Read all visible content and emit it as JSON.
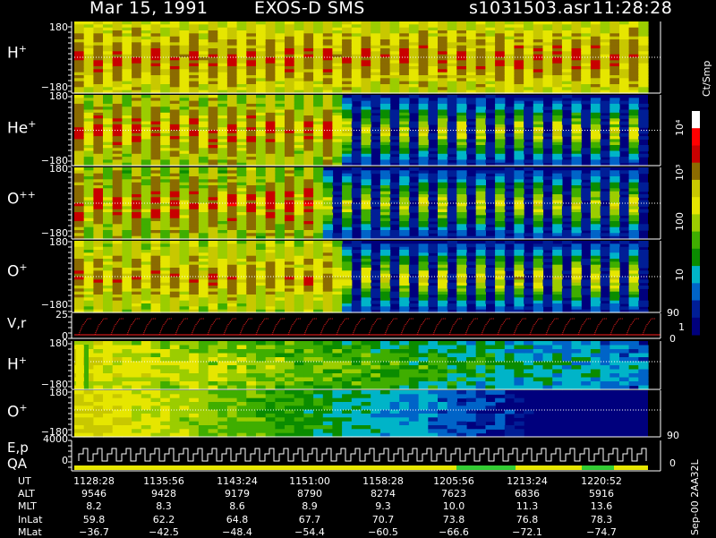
{
  "header": {
    "date": "Mar 15, 1991",
    "instrument": "EXOS-D SMS",
    "file": "s1031503.asr",
    "time": "11:28:28"
  },
  "panels": [
    {
      "species": "H",
      "charge": "+",
      "tick_top": "180",
      "tick_bottom": "−180"
    },
    {
      "species": "He",
      "charge": "+",
      "tick_top": "180",
      "tick_bottom": "−180"
    },
    {
      "species": "O",
      "charge": "++",
      "tick_top": "180",
      "tick_bottom": "−180"
    },
    {
      "species": "O",
      "charge": "+",
      "tick_top": "180",
      "tick_bottom": "−180"
    }
  ],
  "vr_panel": {
    "label": "V,r",
    "tick_top": "25",
    "tick_bottom": "0",
    "right_tick": "90"
  },
  "lower_panels": [
    {
      "species": "H",
      "charge": "+",
      "tick_top": "180",
      "tick_bottom": "−180"
    },
    {
      "species": "O",
      "charge": "+",
      "tick_top": "180",
      "tick_bottom": "−180",
      "right_tick": "90"
    }
  ],
  "ep_panel": {
    "label": "E,p",
    "tick_top": "4000",
    "tick_bottom": "0",
    "right_tick": "0"
  },
  "qa_label": "QA",
  "colorbar": {
    "unit": "Ct/Smp",
    "labels": [
      "10⁴",
      "10³",
      "100",
      "10",
      "1",
      "0"
    ],
    "colors": [
      "#ffffff",
      "#ff0000",
      "#c80000",
      "#8b6b00",
      "#c8c800",
      "#e6e600",
      "#9bcd00",
      "#3fae00",
      "#0a8c00",
      "#00b4c8",
      "#0064c8",
      "#001e96",
      "#00007d"
    ]
  },
  "footer": {
    "rows": [
      {
        "label": "UT",
        "values": [
          "1128:28",
          "1135:56",
          "1143:24",
          "1151:00",
          "1158:28",
          "1205:56",
          "1213:24",
          "1220:52"
        ]
      },
      {
        "label": "ALT",
        "values": [
          "9546",
          "9428",
          "9179",
          "8790",
          "8274",
          "7623",
          "6836",
          "5916"
        ]
      },
      {
        "label": "MLT",
        "values": [
          "8.2",
          "8.3",
          "8.6",
          "8.9",
          "9.3",
          "10.0",
          "11.3",
          "13.6"
        ]
      },
      {
        "label": "InLat",
        "values": [
          "59.8",
          "62.2",
          "64.8",
          "67.7",
          "70.7",
          "73.8",
          "76.8",
          "78.3"
        ]
      },
      {
        "label": "MLat",
        "values": [
          "−36.7",
          "−42.5",
          "−48.4",
          "−54.4",
          "−60.5",
          "−66.6",
          "−72.1",
          "−74.7"
        ]
      }
    ]
  },
  "side_code": "Sep-00 2AA32L",
  "chart_data": {
    "type": "heatmap",
    "title": "Mar 15, 1991   EXOS-D SMS",
    "x": [
      "1128:28",
      "1135:56",
      "1143:24",
      "1151:00",
      "1158:28",
      "1205:56",
      "1213:24",
      "1220:52"
    ],
    "series": [
      {
        "name": "H+",
        "y_range": [
          -180,
          180
        ]
      },
      {
        "name": "He+",
        "y_range": [
          -180,
          180
        ]
      },
      {
        "name": "O++",
        "y_range": [
          -180,
          180
        ]
      },
      {
        "name": "O+",
        "y_range": [
          -180,
          180
        ]
      }
    ],
    "colorbar_unit": "Ct/Smp",
    "colorbar_scale": "log"
  }
}
